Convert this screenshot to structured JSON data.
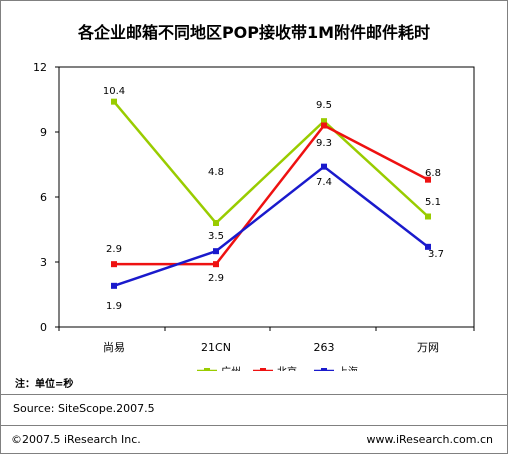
{
  "chart_data": {
    "type": "line",
    "title": "各企业邮箱不同地区POP接收带1M附件邮件耗时",
    "categories": [
      "尚易",
      "21CN",
      "263",
      "万网"
    ],
    "ylim": [
      0,
      12
    ],
    "yticks": [
      "0",
      "3",
      "6",
      "9",
      "12"
    ],
    "grid": false,
    "legend_position": "bottom",
    "series": [
      {
        "name": "广州",
        "color": "#99cc00",
        "values": [
          10.4,
          4.8,
          9.5,
          5.1
        ]
      },
      {
        "name": "北京",
        "color": "#ee1111",
        "values": [
          2.9,
          2.9,
          9.3,
          6.8
        ]
      },
      {
        "name": "上海",
        "color": "#1a1acc",
        "values": [
          1.9,
          3.5,
          7.4,
          3.7
        ]
      }
    ],
    "data_labels": [
      {
        "text": "10.4"
      },
      {
        "text": "4.8"
      },
      {
        "text": "9.5"
      },
      {
        "text": "5.1"
      },
      {
        "text": "2.9"
      },
      {
        "text": "2.9"
      },
      {
        "text": "9.3"
      },
      {
        "text": "6.8"
      },
      {
        "text": "1.9"
      },
      {
        "text": "3.5"
      },
      {
        "text": "7.4"
      },
      {
        "text": "3.7"
      }
    ]
  },
  "note": "注：单位=秒",
  "source": "Source: SiteScope.2007.5",
  "copyright": "©2007.5 iResearch Inc.",
  "website": "www.iResearch.com.cn"
}
